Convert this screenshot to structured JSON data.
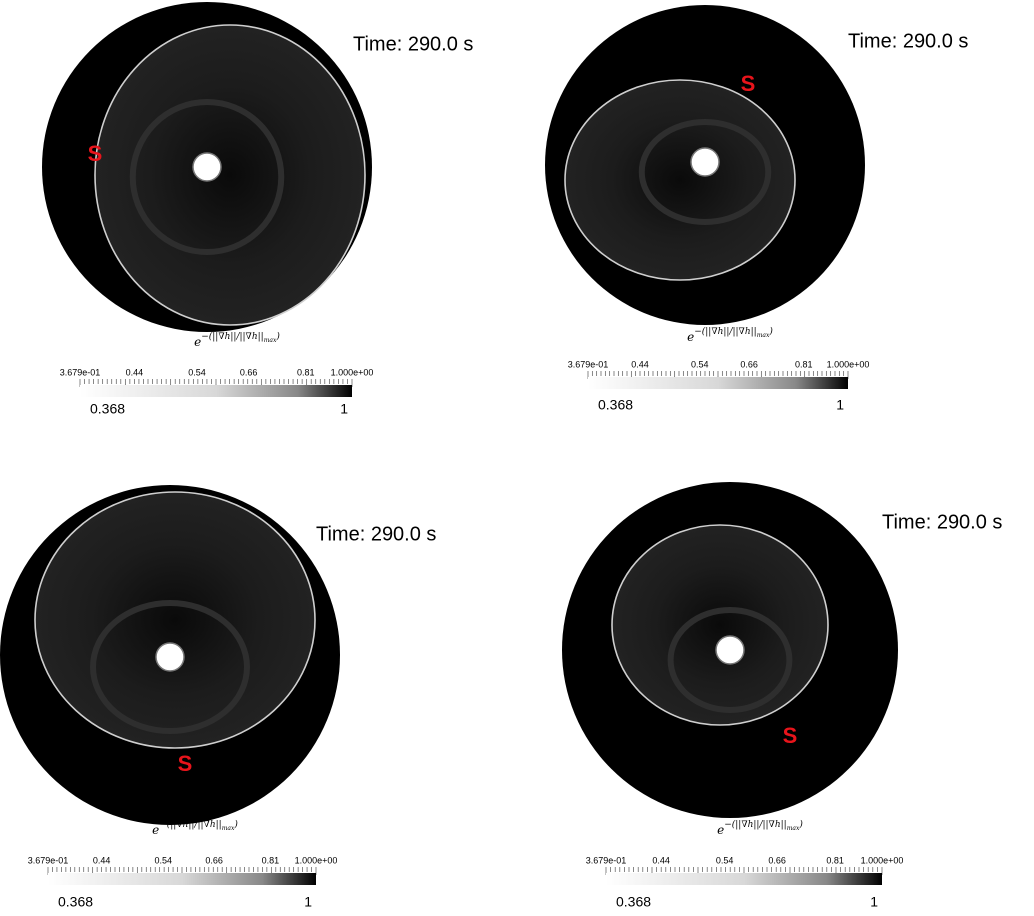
{
  "panels": [
    {
      "time": "Time: 290.0 s",
      "marker": "S",
      "colorbar": {
        "formula": {
          "base": "e",
          "exponent": "−(||∇h||/||∇h||",
          "subscript": "max",
          "close": ")"
        },
        "tick_labels": [
          "3.679e-01",
          "0.44",
          "0.54",
          "0.66",
          "0.81",
          "1.000e+00"
        ],
        "min_label": "0.368",
        "max_label": "1"
      }
    },
    {
      "time": "Time: 290.0 s",
      "marker": "S",
      "colorbar": {
        "formula": {
          "base": "e",
          "exponent": "−(||∇h||/||∇h||",
          "subscript": "max",
          "close": ")"
        },
        "tick_labels": [
          "3.679e-01",
          "0.44",
          "0.54",
          "0.66",
          "0.81",
          "1.000e+00"
        ],
        "min_label": "0.368",
        "max_label": "1"
      }
    },
    {
      "time": "Time: 290.0 s",
      "marker": "S",
      "colorbar": {
        "formula": {
          "base": "e",
          "exponent": "−(||∇h||/||∇h||",
          "subscript": "max",
          "close": ")"
        },
        "tick_labels": [
          "3.679e-01",
          "0.44",
          "0.54",
          "0.66",
          "0.81",
          "1.000e+00"
        ],
        "min_label": "0.368",
        "max_label": "1"
      }
    },
    {
      "time": "Time: 290.0 s",
      "marker": "S",
      "colorbar": {
        "formula": {
          "base": "e",
          "exponent": "−(||∇h||/||∇h||",
          "subscript": "max",
          "close": ")"
        },
        "tick_labels": [
          "3.679e-01",
          "0.44",
          "0.54",
          "0.66",
          "0.81",
          "1.000e+00"
        ],
        "min_label": "0.368",
        "max_label": "1"
      }
    }
  ]
}
